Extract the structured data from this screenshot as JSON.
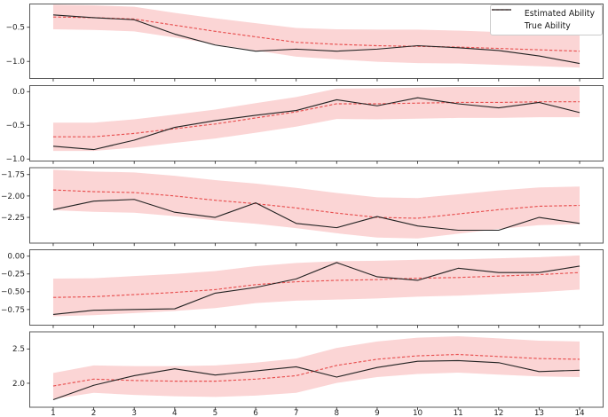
{
  "legend": {
    "items": [
      {
        "label": "Estimated Ability",
        "series": "estimated",
        "style": "dashed"
      },
      {
        "label": "True Ability",
        "series": "true",
        "style": "solid"
      }
    ]
  },
  "colors": {
    "estimated": "#e85050",
    "true": "#222222",
    "band": "#fbd5d5",
    "axis": "#595959",
    "tick": "#333333",
    "tick_label": "#262626",
    "background": "#ffffff"
  },
  "x_axis": {
    "values": [
      1,
      2,
      3,
      4,
      5,
      6,
      7,
      8,
      9,
      10,
      11,
      12,
      13,
      14
    ],
    "labels": [
      "1",
      "2",
      "3",
      "4",
      "5",
      "6",
      "7",
      "8",
      "9",
      "10",
      "11",
      "12",
      "13",
      "14"
    ]
  },
  "chart_data": [
    {
      "type": "line",
      "x": [
        1,
        2,
        3,
        4,
        5,
        6,
        7,
        8,
        9,
        10,
        11,
        12,
        13,
        14
      ],
      "series": [
        {
          "name": "Estimated Ability",
          "style": "dashed",
          "values": [
            -0.35,
            -0.36,
            -0.38,
            -0.47,
            -0.56,
            -0.64,
            -0.72,
            -0.75,
            -0.77,
            -0.78,
            -0.79,
            -0.81,
            -0.83,
            -0.85
          ]
        },
        {
          "name": "True Ability",
          "style": "solid",
          "values": [
            -0.32,
            -0.36,
            -0.39,
            -0.6,
            -0.76,
            -0.85,
            -0.82,
            -0.85,
            -0.82,
            -0.77,
            -0.8,
            -0.84,
            -0.92,
            -1.03
          ]
        }
      ],
      "band": {
        "center": "Estimated Ability",
        "halfwidths": [
          0.18,
          0.18,
          0.18,
          0.18,
          0.19,
          0.2,
          0.21,
          0.22,
          0.235,
          0.245,
          0.24,
          0.24,
          0.24,
          0.24
        ]
      },
      "ylim": [
        -0.16,
        -1.25
      ],
      "yticks": [
        {
          "value": -0.5,
          "label": "−0.5"
        },
        {
          "value": -1.0,
          "label": "−1.0"
        }
      ]
    },
    {
      "type": "line",
      "x": [
        1,
        2,
        3,
        4,
        5,
        6,
        7,
        8,
        9,
        10,
        11,
        12,
        13,
        14
      ],
      "series": [
        {
          "name": "Estimated Ability",
          "style": "dashed",
          "values": [
            -0.67,
            -0.67,
            -0.62,
            -0.55,
            -0.48,
            -0.39,
            -0.3,
            -0.18,
            -0.18,
            -0.17,
            -0.16,
            -0.16,
            -0.15,
            -0.15
          ]
        },
        {
          "name": "True Ability",
          "style": "solid",
          "values": [
            -0.81,
            -0.86,
            -0.72,
            -0.53,
            -0.43,
            -0.35,
            -0.28,
            -0.12,
            -0.21,
            -0.09,
            -0.18,
            -0.24,
            -0.16,
            -0.31
          ]
        }
      ],
      "band": {
        "center": "Estimated Ability",
        "halfwidths": [
          0.21,
          0.21,
          0.21,
          0.21,
          0.215,
          0.22,
          0.22,
          0.225,
          0.23,
          0.23,
          0.23,
          0.23,
          0.23,
          0.23
        ]
      },
      "ylim": [
        0.09,
        -1.03
      ],
      "yticks": [
        {
          "value": 0.0,
          "label": "0.0"
        },
        {
          "value": -0.5,
          "label": "−0.5"
        },
        {
          "value": -1.0,
          "label": "−1.0"
        }
      ]
    },
    {
      "type": "line",
      "x": [
        1,
        2,
        3,
        4,
        5,
        6,
        7,
        8,
        9,
        10,
        11,
        12,
        13,
        14
      ],
      "series": [
        {
          "name": "Estimated Ability",
          "style": "dashed",
          "values": [
            -1.93,
            -1.95,
            -1.96,
            -2.0,
            -2.05,
            -2.09,
            -2.14,
            -2.2,
            -2.25,
            -2.26,
            -2.21,
            -2.16,
            -2.12,
            -2.11
          ]
        },
        {
          "name": "True Ability",
          "style": "solid",
          "values": [
            -2.16,
            -2.06,
            -2.04,
            -2.19,
            -2.25,
            -2.08,
            -2.32,
            -2.37,
            -2.24,
            -2.35,
            -2.4,
            -2.4,
            -2.25,
            -2.32
          ]
        }
      ],
      "band": {
        "center": "Estimated Ability",
        "halfwidths": [
          0.235,
          0.235,
          0.235,
          0.235,
          0.235,
          0.235,
          0.235,
          0.235,
          0.235,
          0.235,
          0.23,
          0.225,
          0.22,
          0.22
        ]
      },
      "ylim": [
        -1.67,
        -2.55
      ],
      "yticks": [
        {
          "value": -1.75,
          "label": "−1.75"
        },
        {
          "value": -2.0,
          "label": "−2.00"
        },
        {
          "value": -2.25,
          "label": "−2.25"
        }
      ]
    },
    {
      "type": "line",
      "x": [
        1,
        2,
        3,
        4,
        5,
        6,
        7,
        8,
        9,
        10,
        11,
        12,
        13,
        14
      ],
      "series": [
        {
          "name": "Estimated Ability",
          "style": "dashed",
          "values": [
            -0.58,
            -0.57,
            -0.54,
            -0.51,
            -0.47,
            -0.4,
            -0.36,
            -0.34,
            -0.33,
            -0.31,
            -0.3,
            -0.28,
            -0.26,
            -0.23
          ]
        },
        {
          "name": "True Ability",
          "style": "solid",
          "values": [
            -0.82,
            -0.76,
            -0.75,
            -0.74,
            -0.52,
            -0.44,
            -0.32,
            -0.09,
            -0.29,
            -0.34,
            -0.17,
            -0.23,
            -0.23,
            -0.14
          ]
        }
      ],
      "band": {
        "center": "Estimated Ability",
        "halfwidths": [
          0.265,
          0.26,
          0.26,
          0.26,
          0.26,
          0.26,
          0.265,
          0.27,
          0.265,
          0.26,
          0.255,
          0.25,
          0.245,
          0.24
        ]
      },
      "ylim": [
        0.09,
        -0.97
      ],
      "yticks": [
        {
          "value": 0.0,
          "label": "0.00"
        },
        {
          "value": -0.25,
          "label": "−0.25"
        },
        {
          "value": -0.5,
          "label": "−0.50"
        },
        {
          "value": -0.75,
          "label": "−0.75"
        }
      ]
    },
    {
      "type": "line",
      "x": [
        1,
        2,
        3,
        4,
        5,
        6,
        7,
        8,
        9,
        10,
        11,
        12,
        13,
        14
      ],
      "series": [
        {
          "name": "Estimated Ability",
          "style": "dashed",
          "values": [
            1.96,
            2.06,
            2.04,
            2.03,
            2.03,
            2.06,
            2.11,
            2.26,
            2.35,
            2.4,
            2.42,
            2.39,
            2.36,
            2.35
          ]
        },
        {
          "name": "True Ability",
          "style": "solid",
          "values": [
            1.76,
            1.97,
            2.11,
            2.21,
            2.12,
            2.18,
            2.24,
            2.09,
            2.23,
            2.32,
            2.33,
            2.3,
            2.17,
            2.19
          ]
        }
      ],
      "band": {
        "center": "Estimated Ability",
        "halfwidths": [
          0.19,
          0.2,
          0.21,
          0.22,
          0.23,
          0.24,
          0.25,
          0.255,
          0.26,
          0.265,
          0.265,
          0.265,
          0.26,
          0.26
        ]
      },
      "ylim": [
        2.75,
        1.65
      ],
      "yticks": [
        {
          "value": 2.5,
          "label": "2.5"
        },
        {
          "value": 2.0,
          "label": "2.0"
        }
      ]
    }
  ]
}
